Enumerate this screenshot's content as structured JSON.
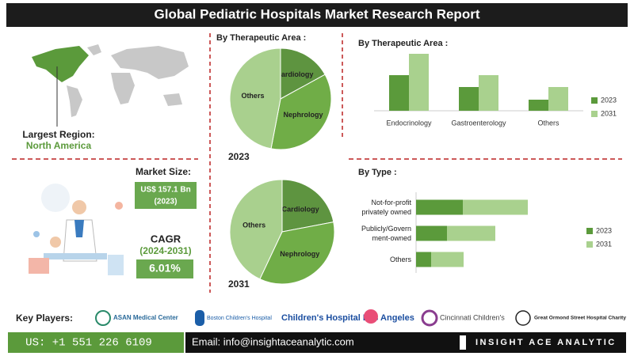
{
  "title": "Global Pediatric Hospitals Market Research Report",
  "region": {
    "label": "Largest Region:",
    "value": "North America"
  },
  "market_size": {
    "label": "Market Size:",
    "value": "US$ 157.1 Bn",
    "year": "(2023)"
  },
  "cagr": {
    "label": "CAGR",
    "period": "(2024-2031)",
    "value": "6.01%"
  },
  "key_players": {
    "label": "Key Players:",
    "names": [
      "ASAN Medical Center",
      "Boston Children's Hospital",
      "Children's Hospital Los Angeles",
      "Cincinnati Children's",
      "Great Ormond Street Hospital Charity"
    ]
  },
  "footer": {
    "phone": "US: +1 551 226 6109",
    "email": "Email: info@insightaceanalytic.com",
    "brand": "INSIGHT ACE ANALYTIC"
  },
  "chart_data": [
    {
      "type": "pie",
      "title": "By Therapeutic Area :",
      "label": "2023",
      "categories": [
        "Cardiology",
        "Nephrology",
        "Others"
      ],
      "values": [
        17,
        36,
        47
      ],
      "colors": [
        "#5e9440",
        "#70ad47",
        "#a9d08e"
      ]
    },
    {
      "type": "pie",
      "label": "2031",
      "categories": [
        "Cardiology",
        "Nephrology",
        "Others"
      ],
      "values": [
        22,
        35,
        43
      ],
      "colors": [
        "#5e9440",
        "#70ad47",
        "#a9d08e"
      ]
    },
    {
      "type": "bar",
      "title": "By  Therapeutic Area :",
      "categories": [
        "Endocrinology",
        "Gastroenterology",
        "Others"
      ],
      "series": [
        {
          "name": "2023",
          "color": "#5b9a3b",
          "values": [
            45,
            30,
            14
          ]
        },
        {
          "name": "2031",
          "color": "#a9d18e",
          "values": [
            72,
            45,
            30
          ]
        }
      ]
    },
    {
      "type": "hbar-stacked",
      "title": "By Type :",
      "categories": [
        "Not-for-profit\nprivately owned",
        "Publicly/Govern\nment-owned",
        "Others"
      ],
      "series": [
        {
          "name": "2023",
          "color": "#5b9a3b",
          "values": [
            59,
            39,
            19
          ]
        },
        {
          "name": "2031",
          "color": "#a9d18e",
          "values": [
            82,
            61,
            41
          ]
        }
      ]
    }
  ]
}
